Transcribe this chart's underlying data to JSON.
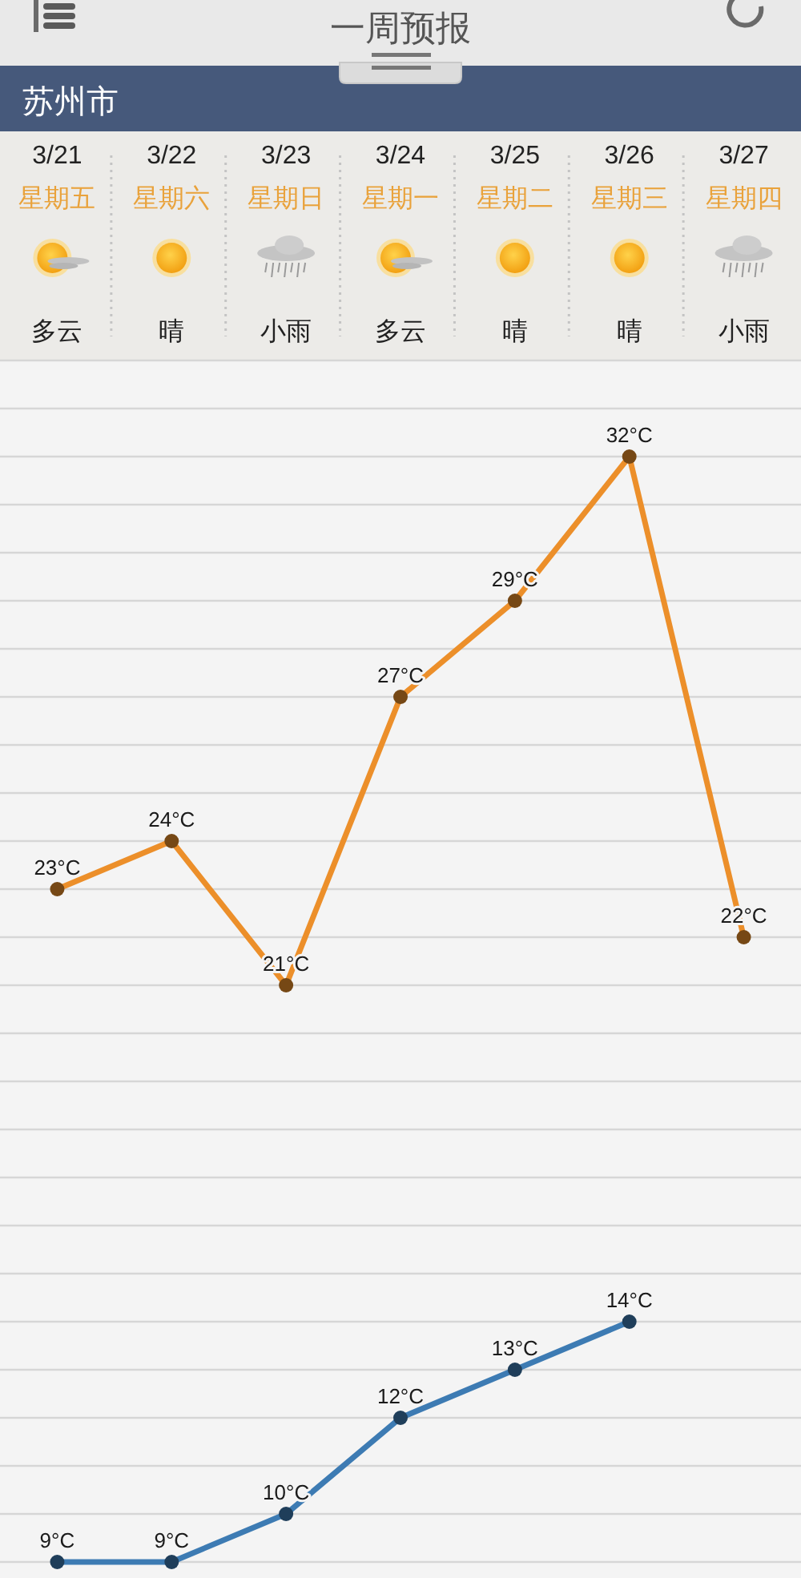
{
  "chart_data": {
    "type": "line",
    "title": "一周预报",
    "subtitle": "苏州市",
    "categories": [
      "3/21",
      "3/22",
      "3/23",
      "3/24",
      "3/25",
      "3/26",
      "3/27"
    ],
    "series": [
      {
        "color": "#ec8f2a",
        "values": [
          23,
          24,
          21,
          27,
          29,
          32,
          22
        ],
        "value_labels": [
          "23°C",
          "24°C",
          "21°C",
          "27°C",
          "29°C",
          "32°C",
          "22°C"
        ]
      },
      {
        "color": "#3d7bb3",
        "values": [
          9,
          9,
          10,
          12,
          13,
          14,
          null
        ],
        "value_labels": [
          "9°C",
          "9°C",
          "10°C",
          "12°C",
          "13°C",
          "14°C",
          null
        ]
      }
    ],
    "annotations": [
      "星期五",
      "星期六",
      "星期日",
      "星期一",
      "星期二",
      "星期三",
      "星期四",
      "多云",
      "晴",
      "小雨",
      "多云",
      "晴",
      "晴",
      "小雨"
    ],
    "ylim": [
      9,
      34
    ],
    "yticks": [
      {
        "value": 9,
        "label": null
      },
      {
        "value": 10,
        "label": null
      },
      {
        "value": 11,
        "label": null
      },
      {
        "value": 12,
        "label": null
      },
      {
        "value": 13,
        "label": null
      },
      {
        "value": 14,
        "label": null
      },
      {
        "value": 15,
        "label": null
      },
      {
        "value": 16,
        "label": null
      },
      {
        "value": 17,
        "label": null
      },
      {
        "value": 18,
        "label": null
      },
      {
        "value": 19,
        "label": null
      },
      {
        "value": 20,
        "label": null
      },
      {
        "value": 21,
        "label": null
      },
      {
        "value": 22,
        "label": null
      },
      {
        "value": 23,
        "label": null
      },
      {
        "value": 24,
        "label": null
      },
      {
        "value": 25,
        "label": null
      },
      {
        "value": 26,
        "label": null
      },
      {
        "value": 27,
        "label": null
      },
      {
        "value": 28,
        "label": null
      },
      {
        "value": 29,
        "label": null
      },
      {
        "value": 30,
        "label": null
      },
      {
        "value": 31,
        "label": null
      },
      {
        "value": 32,
        "label": null
      },
      {
        "value": 33,
        "label": null
      },
      {
        "value": 34,
        "label": null
      }
    ],
    "grid": "y",
    "tick_labels": "x",
    "marker": "circle",
    "line_style": "solid"
  }
}
